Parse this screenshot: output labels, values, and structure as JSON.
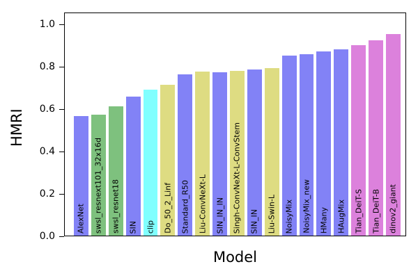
{
  "chart_data": {
    "type": "bar",
    "title": "",
    "xlabel": "Model",
    "ylabel": "HMRI",
    "ylim": [
      0,
      1.05
    ],
    "grid": false,
    "legend": null,
    "bar_label_position": "inside-bottom-rotated-90",
    "categories": [
      "AlexNet",
      "swsl_resnext101_32x16d",
      "swsl_resnet18",
      "SIN",
      "clip",
      "Do_50_2_Linf",
      "Standard_R50",
      "Liu-ConvNeXt-L",
      "SIN_IN_IN",
      "Singh-ConvNeXt-L-ConvStem",
      "SIN_IN",
      "Liu-Swin-L",
      "NoisyMix",
      "NoisyMix_new",
      "HMany",
      "HAugMix",
      "Tian_DeiT-S",
      "Tian_DeiT-B",
      "dinov2_giant"
    ],
    "values": [
      0.565,
      0.57,
      0.61,
      0.655,
      0.69,
      0.71,
      0.76,
      0.775,
      0.772,
      0.778,
      0.785,
      0.79,
      0.85,
      0.855,
      0.87,
      0.88,
      0.9,
      0.92,
      0.95
    ],
    "bar_colors": [
      "#8282f6",
      "#7ec17e",
      "#7ec17e",
      "#8282f6",
      "#80ffff",
      "#dedc82",
      "#8282f6",
      "#dedc82",
      "#8282f6",
      "#dedc82",
      "#8282f6",
      "#dedc82",
      "#8282f6",
      "#8282f6",
      "#8282f6",
      "#8282f6",
      "#dc81dc",
      "#dc81dc",
      "#dc81dc"
    ],
    "palette": {
      "blue": "#8282f6",
      "green": "#7ec17e",
      "cyan": "#80ffff",
      "khaki": "#dedc82",
      "pink": "#dc81dc"
    },
    "yticks": [
      {
        "value": 0.0,
        "label": "0.0"
      },
      {
        "value": 0.2,
        "label": "0.2"
      },
      {
        "value": 0.4,
        "label": "0.4"
      },
      {
        "value": 0.6,
        "label": "0.6"
      },
      {
        "value": 0.8,
        "label": "0.8"
      },
      {
        "value": 1.0,
        "label": "1.0"
      }
    ]
  }
}
